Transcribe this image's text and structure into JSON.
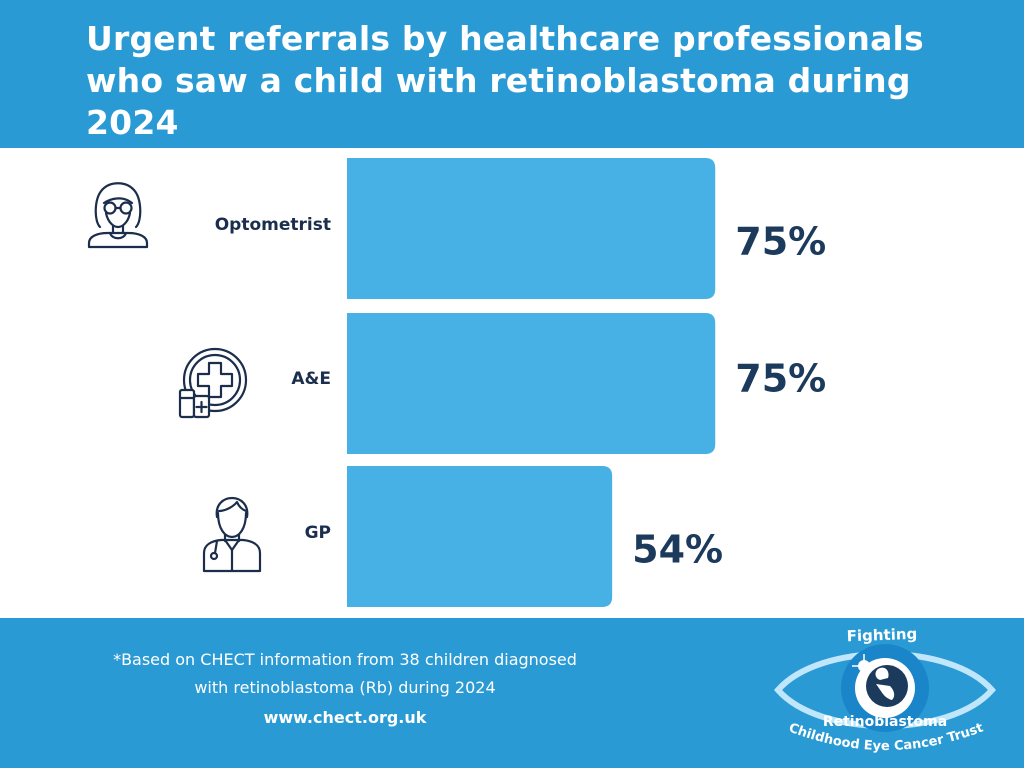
{
  "title": "Urgent referrals by healthcare professionals who saw a child with retinoblastoma during 2024",
  "chart_data": {
    "type": "bar",
    "orientation": "horizontal",
    "title": "Urgent referrals by healthcare professionals who saw a child with retinoblastoma during 2024",
    "categories": [
      "Optometrist",
      "A&E",
      "GP"
    ],
    "values": [
      75,
      75,
      54
    ],
    "value_labels": [
      "75%",
      "75%",
      "54%"
    ],
    "unit": "%",
    "xlim": [
      0,
      100
    ],
    "icons": [
      "optometrist-icon",
      "hospital-cross-icon",
      "doctor-icon"
    ],
    "bar_color": "#47b1e5"
  },
  "footer": {
    "note_line1": "*Based on CHECT information from 38 children diagnosed",
    "note_line2": "with retinoblastoma (Rb) during 2024",
    "url": "www.chect.org.uk"
  },
  "logo": {
    "top_text": "Fighting",
    "middle_text": "Retinoblastoma",
    "bottom_text": "Childhood Eye Cancer Trust"
  },
  "colors": {
    "header_bg": "#2a9ad4",
    "bar": "#47b1e5",
    "label_text": "#1b2e4b",
    "value_text": "#1b3a5c"
  }
}
